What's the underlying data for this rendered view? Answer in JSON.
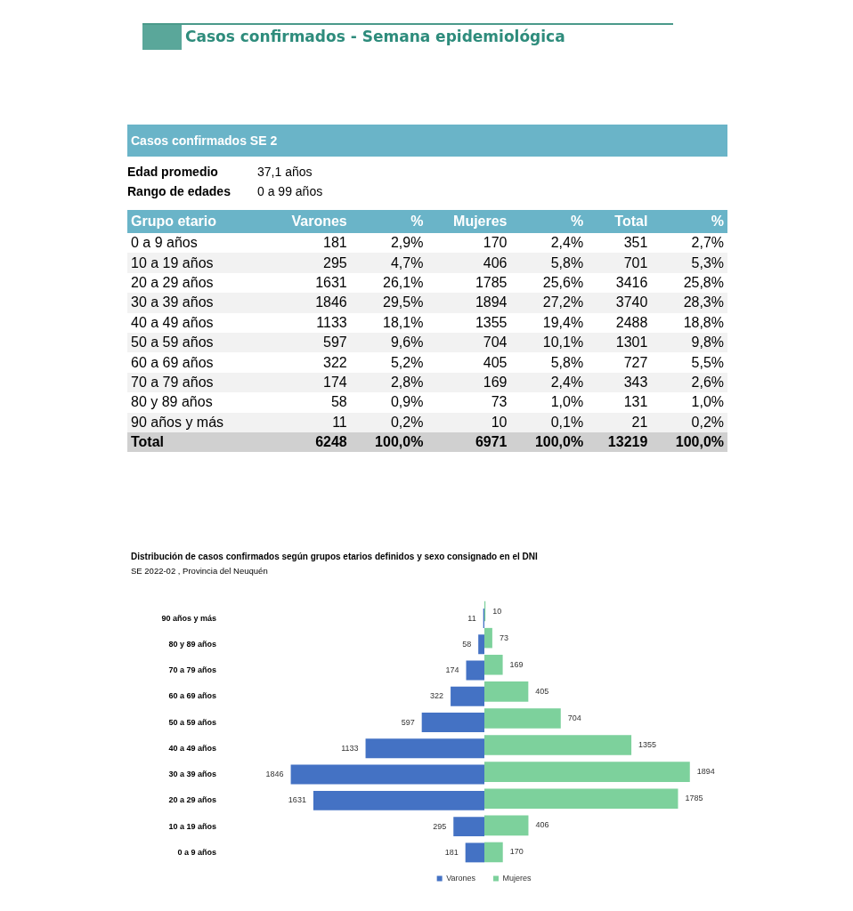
{
  "chart_data": [
    {
      "type": "other",
      "title": "Casos confirmados - Semana epidemiológica",
      "subtitle": "Casos confirmados SE 2",
      "annotations": [
        "Edad promedio",
        "37,1 años",
        "Rango de edades",
        "0 a 99 años"
      ],
      "xlabel": "Grupo etario",
      "categories": [
        "0 a 9 años",
        "10 a 19 años",
        "20 a 29 años",
        "30 a 39 años",
        "40 a 49 años",
        "50 a 59 años",
        "60 a 69 años",
        "70 a 79 años",
        "80 y 89 años",
        "90 años y más",
        "Total"
      ],
      "series": [
        {
          "name": "Varones",
          "colors": [
            "#ffffff",
            "#f2f2f2",
            "#ffffff",
            "#f2f2f2",
            "#ffffff",
            "#f2f2f2",
            "#ffffff",
            "#f2f2f2",
            "#ffffff",
            "#f2f2f2",
            "#d0d0d0"
          ],
          "values": [
            181,
            295,
            1631,
            1846,
            1133,
            597,
            322,
            174,
            58,
            11,
            6248
          ],
          "value_labels": [
            "181",
            "295",
            "1631",
            "1846",
            "1133",
            "597",
            "322",
            "174",
            "58",
            "11",
            "6248"
          ]
        },
        {
          "name": "%",
          "colors": [
            "#ffffff",
            "#f2f2f2",
            "#ffffff",
            "#f2f2f2",
            "#ffffff",
            "#f2f2f2",
            "#ffffff",
            "#f2f2f2",
            "#ffffff",
            "#f2f2f2",
            "#d0d0d0"
          ],
          "values": [
            2.9,
            4.7,
            26.1,
            29.5,
            18.1,
            9.6,
            5.2,
            2.8,
            0.9,
            0.2,
            100.0
          ],
          "value_labels": [
            "2,9%",
            "4,7%",
            "26,1%",
            "29,5%",
            "18,1%",
            "9,6%",
            "5,2%",
            "2,8%",
            "0,9%",
            "0,2%",
            "100,0%"
          ]
        },
        {
          "name": "Mujeres",
          "colors": [
            "#ffffff",
            "#f2f2f2",
            "#ffffff",
            "#f2f2f2",
            "#ffffff",
            "#f2f2f2",
            "#ffffff",
            "#f2f2f2",
            "#ffffff",
            "#f2f2f2",
            "#d0d0d0"
          ],
          "values": [
            170,
            406,
            1785,
            1894,
            1355,
            704,
            405,
            169,
            73,
            10,
            6971
          ],
          "value_labels": [
            "170",
            "406",
            "1785",
            "1894",
            "1355",
            "704",
            "405",
            "169",
            "73",
            "10",
            "6971"
          ]
        },
        {
          "name": "%",
          "colors": [
            "#ffffff",
            "#f2f2f2",
            "#ffffff",
            "#f2f2f2",
            "#ffffff",
            "#f2f2f2",
            "#ffffff",
            "#f2f2f2",
            "#ffffff",
            "#f2f2f2",
            "#d0d0d0"
          ],
          "values": [
            2.4,
            5.8,
            25.6,
            27.2,
            19.4,
            10.1,
            5.8,
            2.4,
            1.0,
            0.1,
            100.0
          ],
          "value_labels": [
            "2,4%",
            "5,8%",
            "25,6%",
            "27,2%",
            "19,4%",
            "10,1%",
            "5,8%",
            "2,4%",
            "1,0%",
            "0,1%",
            "100,0%"
          ]
        },
        {
          "name": "Total",
          "colors": [
            "#ffffff",
            "#f2f2f2",
            "#ffffff",
            "#f2f2f2",
            "#ffffff",
            "#f2f2f2",
            "#ffffff",
            "#f2f2f2",
            "#ffffff",
            "#f2f2f2",
            "#d0d0d0"
          ],
          "values": [
            351,
            701,
            3416,
            3740,
            2488,
            1301,
            727,
            343,
            131,
            21,
            13219
          ],
          "value_labels": [
            "351",
            "701",
            "3416",
            "3740",
            "2488",
            "1301",
            "727",
            "343",
            "131",
            "21",
            "13219"
          ]
        },
        {
          "name": "%",
          "colors": [
            "#ffffff",
            "#f2f2f2",
            "#ffffff",
            "#f2f2f2",
            "#ffffff",
            "#f2f2f2",
            "#ffffff",
            "#f2f2f2",
            "#ffffff",
            "#f2f2f2",
            "#d0d0d0"
          ],
          "values": [
            2.7,
            5.3,
            25.8,
            28.3,
            18.8,
            9.8,
            5.5,
            2.6,
            1.0,
            0.2,
            100.0
          ],
          "value_labels": [
            "2,7%",
            "5,3%",
            "25,8%",
            "28,3%",
            "18,8%",
            "9,8%",
            "5,5%",
            "2,6%",
            "1,0%",
            "0,2%",
            "100,0%"
          ]
        }
      ]
    },
    {
      "type": "bar",
      "orientation": "horizontal",
      "title": "Distribución de casos confirmados según grupos etarios definidos y sexo consignado en el DNI",
      "subtitle": "SE 2022-02 , Provincia del Neuquén",
      "legend": "bottom",
      "grid": false,
      "tick_labels": "y",
      "data_labels": true,
      "categories": [
        "90 años y más",
        "80 y 89 años",
        "70 a 79 años",
        "60 a 69 años",
        "50 a 59 años",
        "40 a 49 años",
        "30 a 39 años",
        "20 a 29 años",
        "10 a 19 años",
        "0 a 9 años"
      ],
      "series": [
        {
          "name": "Varones",
          "color": "#4472c4",
          "values": [
            11,
            58,
            174,
            322,
            597,
            1133,
            1846,
            1631,
            295,
            181
          ]
        }
      ]
    },
    {
      "type": "bar",
      "orientation": "horizontal",
      "legend": "bottom",
      "grid": false,
      "tick_labels": false,
      "data_labels": true,
      "categories": [
        null,
        null,
        null,
        null,
        null,
        null,
        null,
        null,
        null,
        null
      ],
      "series": [
        {
          "name": "Mujeres",
          "color": "#7dd19c",
          "values": [
            10,
            73,
            169,
            405,
            704,
            1355,
            1894,
            1785,
            406,
            170
          ]
        }
      ]
    }
  ]
}
